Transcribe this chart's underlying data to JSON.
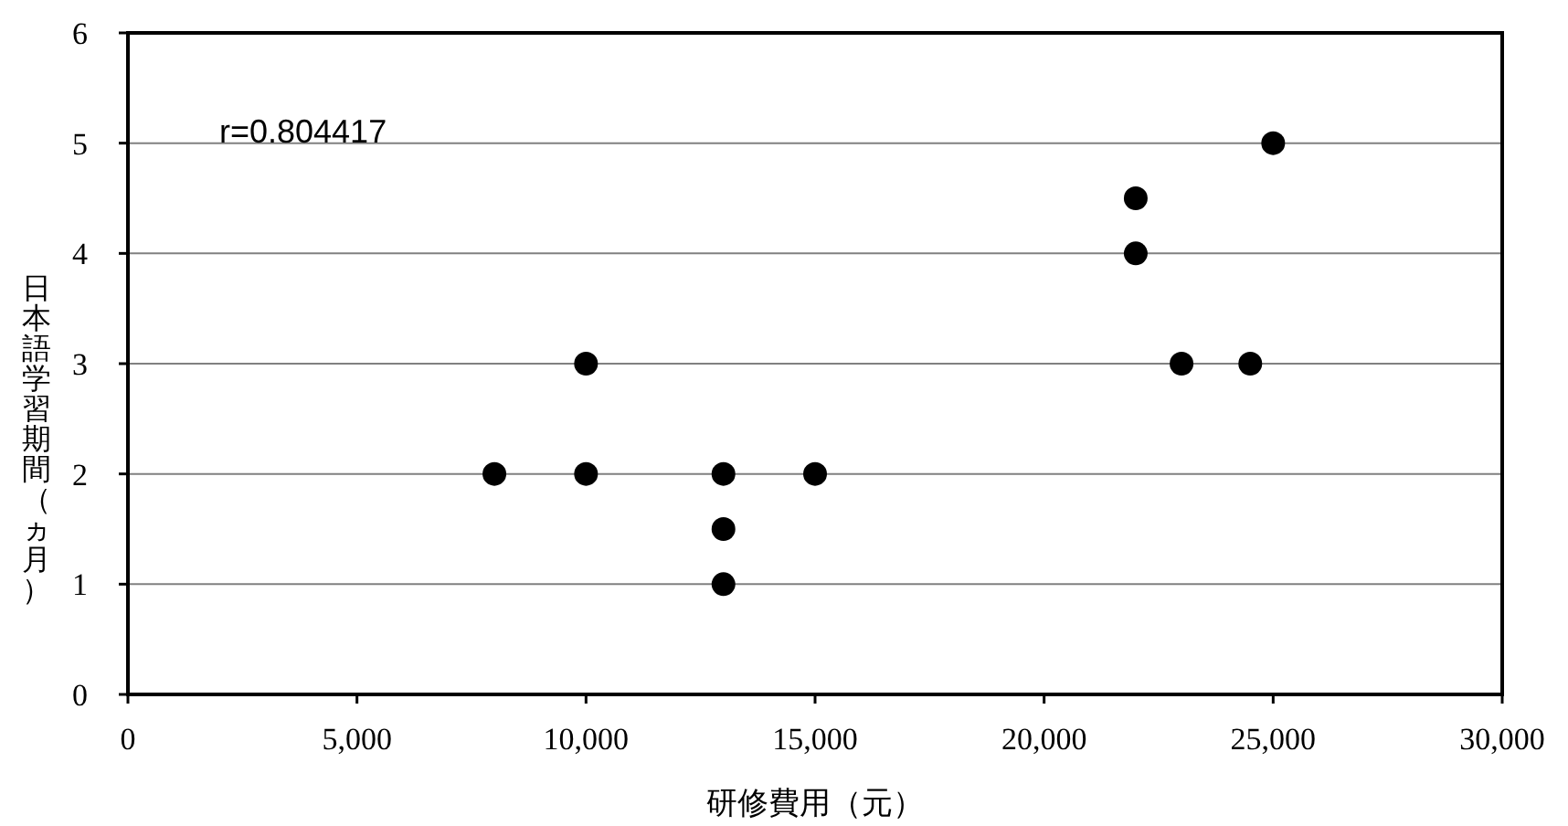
{
  "chart_data": {
    "type": "scatter",
    "xlabel": "研修費用（元）",
    "ylabel": "日本語学習期間（ヵ月）",
    "annotations": [
      "r=0.804417"
    ],
    "series": [
      {
        "color": "#000000",
        "x": [
          8000,
          10000,
          10000,
          13000,
          13000,
          13000,
          15000,
          22000,
          22000,
          23000,
          24500,
          25000
        ],
        "values": [
          2,
          3,
          2,
          2,
          1.5,
          1,
          2,
          4.5,
          4,
          3,
          3,
          5
        ]
      }
    ],
    "xlim": [
      0,
      30000
    ],
    "xticks": [
      0,
      {
        "value": 5000,
        "label": "5,000"
      },
      {
        "value": 10000,
        "label": "10,000"
      },
      {
        "value": 15000,
        "label": "15,000"
      },
      {
        "value": 20000,
        "label": "20,000"
      },
      {
        "value": 25000,
        "label": "25,000"
      },
      {
        "value": 30000,
        "label": "30,000"
      }
    ],
    "ylim": [
      0,
      6
    ],
    "yticks": [
      0,
      1,
      2,
      3,
      4,
      5,
      6
    ],
    "grid": "y",
    "marker": "circle"
  }
}
